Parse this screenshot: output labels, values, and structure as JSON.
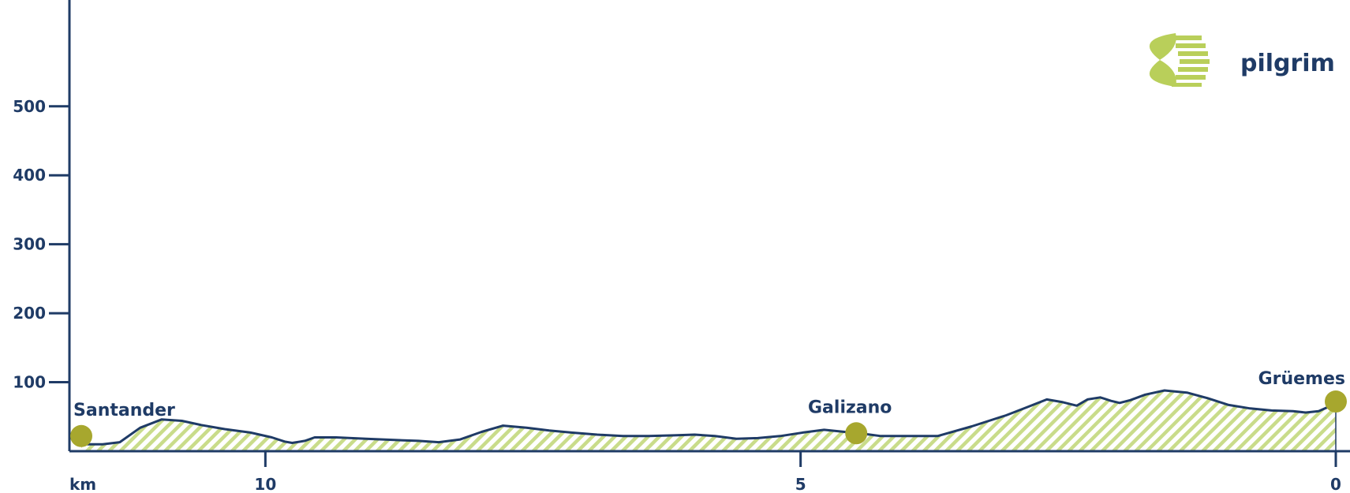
{
  "logo": {
    "text": "pilgrim",
    "icon": "scallop-shell-icon"
  },
  "colors": {
    "axis": "#1f3b66",
    "fill": "#c9dc8a",
    "marker": "#a7a72e",
    "logo_icon": "#b9cf5a"
  },
  "chart_data": {
    "type": "area",
    "x_unit_label": "km",
    "x_reversed": true,
    "xlim": [
      11.72,
      0
    ],
    "ylim": [
      0,
      650
    ],
    "x_ticks": [
      10,
      5,
      0
    ],
    "y_ticks": [
      100,
      200,
      300,
      400,
      500
    ],
    "series": [
      {
        "x": [
          11.72,
          11.66,
          11.52,
          11.36,
          11.17,
          10.97,
          10.78,
          10.6,
          10.38,
          10.14,
          9.94,
          9.82,
          9.75,
          9.63,
          9.54,
          9.34,
          9.06,
          8.75,
          8.57,
          8.38,
          8.18,
          7.98,
          7.78,
          7.56,
          7.35,
          7.14,
          6.9,
          6.66,
          6.42,
          6.18,
          5.99,
          5.8,
          5.6,
          5.4,
          5.19,
          4.98,
          4.78,
          4.59,
          4.4,
          4.25,
          4.04,
          3.72,
          3.4,
          3.08,
          2.88,
          2.7,
          2.55,
          2.42,
          2.32,
          2.2,
          2.1,
          2.02,
          1.92,
          1.78,
          1.6,
          1.39,
          1.2,
          1.0,
          0.8,
          0.6,
          0.4,
          0.28,
          0.16,
          0.06,
          0.0
        ],
        "y": [
          24,
          10,
          10,
          13,
          34,
          46,
          44,
          38,
          32,
          27,
          20,
          14,
          12,
          15,
          20,
          20,
          18,
          16,
          15,
          13,
          17,
          28,
          37,
          34,
          30,
          27,
          24,
          22,
          22,
          23,
          24,
          22,
          18,
          19,
          22,
          27,
          31,
          28,
          25,
          22,
          22,
          22,
          36,
          52,
          64,
          75,
          71,
          66,
          75,
          78,
          73,
          70,
          74,
          82,
          88,
          85,
          77,
          67,
          62,
          59,
          58,
          56,
          58,
          65,
          72
        ]
      }
    ],
    "places": [
      {
        "name": "Santander",
        "x": 11.72,
        "y": 22
      },
      {
        "name": "Galizano",
        "x": 4.48,
        "y": 26
      },
      {
        "name": "Grüemes",
        "x": 0.0,
        "y": 72
      }
    ]
  }
}
